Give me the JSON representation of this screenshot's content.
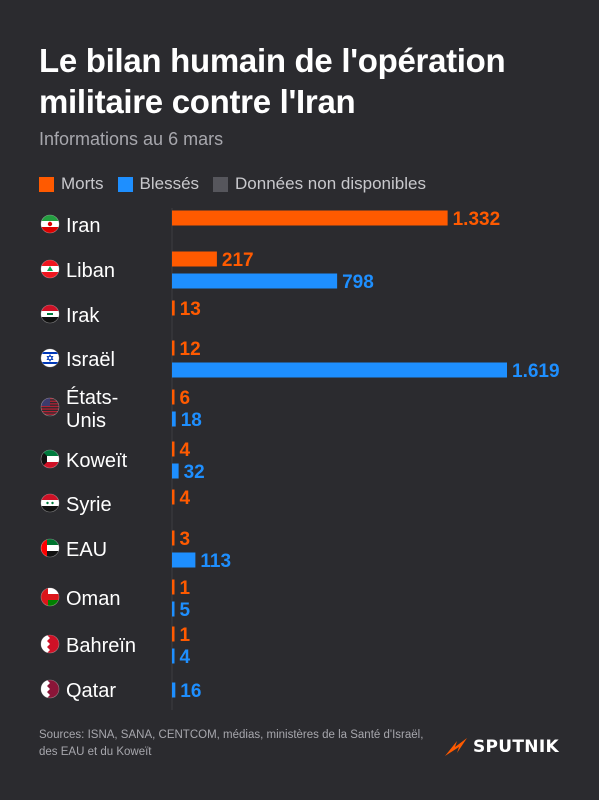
{
  "title": "Le bilan humain de l'opération militaire contre l'Iran",
  "subtitle": "Informations au 6 mars",
  "colors": {
    "morts": "#ff5a00",
    "blesses": "#1e8fff",
    "na": "#56565c",
    "background": "#2b2b2f"
  },
  "legend": [
    {
      "label": "Morts",
      "color": "#ff5a00"
    },
    {
      "label": "Blessés",
      "color": "#1e8fff"
    },
    {
      "label": "Données non disponibles",
      "color": "#56565c"
    }
  ],
  "chart_data": {
    "type": "bar",
    "orientation": "horizontal",
    "categories": [
      "Iran",
      "Liban",
      "Irak",
      "Israël",
      "États-Unis",
      "Koweït",
      "Syrie",
      "EAU",
      "Oman",
      "Bahreïn",
      "Qatar"
    ],
    "category_lines": [
      [
        "Iran"
      ],
      [
        "Liban"
      ],
      [
        "Irak"
      ],
      [
        "Israël"
      ],
      [
        "États-",
        "Unis"
      ],
      [
        "Koweït"
      ],
      [
        "Syrie"
      ],
      [
        "EAU"
      ],
      [
        "Oman"
      ],
      [
        "Bahreïn"
      ],
      [
        "Qatar"
      ]
    ],
    "flag_icons": [
      "iran-flag-icon",
      "lebanon-flag-icon",
      "iraq-flag-icon",
      "israel-flag-icon",
      "usa-flag-icon",
      "kuwait-flag-icon",
      "syria-flag-icon",
      "uae-flag-icon",
      "oman-flag-icon",
      "bahrain-flag-icon",
      "qatar-flag-icon"
    ],
    "series": [
      {
        "name": "Morts",
        "values": [
          1332,
          217,
          13,
          12,
          6,
          4,
          4,
          3,
          1,
          1,
          null
        ],
        "labels": [
          "1.332",
          "217",
          "13",
          "12",
          "6",
          "4",
          "4",
          "3",
          "1",
          "1",
          ""
        ]
      },
      {
        "name": "Blessés",
        "values": [
          null,
          798,
          null,
          1619,
          18,
          32,
          null,
          113,
          5,
          4,
          16
        ],
        "labels": [
          "",
          "798",
          "",
          "1.619",
          "18",
          "32",
          "",
          "113",
          "5",
          "4",
          "16"
        ]
      }
    ],
    "xlim": [
      0,
      1619
    ]
  },
  "footer": {
    "sources": "Sources: ISNA, SANA, CENTCOM, médias, ministères de la Santé d'Israël, des EAU et du Koweït"
  },
  "logo": {
    "text": "SPUTNIK",
    "icon": "sputnik-logo-icon"
  }
}
